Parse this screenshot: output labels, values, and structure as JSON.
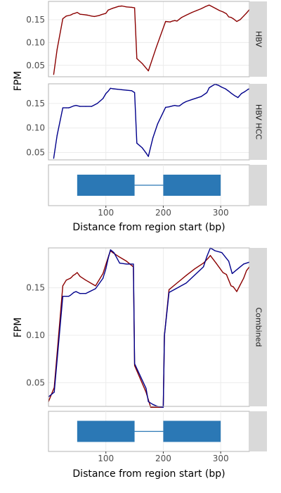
{
  "colors": {
    "hbv": "#8b0000",
    "hcc": "#00008b",
    "gene": "#2b78b5",
    "strip": "#d9d9d9",
    "grid": "#ececec",
    "border": "#b3b3b3"
  },
  "chart_data": [
    {
      "type": "line",
      "panel": "top",
      "xlabel": "Distance from region start (bp)",
      "ylabel": "FPM",
      "xlim": [
        0,
        350
      ],
      "xticks": [
        100,
        200,
        300
      ],
      "grid": true,
      "facets": [
        {
          "strip_label": "HBV",
          "ylim": [
            0.025,
            0.19
          ],
          "yticks": [
            0.05,
            0.1,
            0.15
          ],
          "series": [
            {
              "color": "#8b0000",
              "x": [
                9,
                15,
                25,
                31,
                38,
                40,
                43,
                46,
                50,
                55,
                62,
                68,
                75,
                80,
                88,
                92,
                100,
                104,
                108,
                112,
                117,
                122,
                128,
                136,
                145,
                150,
                154,
                164,
                174,
                188,
                204,
                212,
                216,
                220,
                224,
                228,
                232,
                240,
                250,
                258,
                266,
                274,
                280,
                286,
                292,
                298,
                304,
                310,
                314,
                318,
                322,
                328,
                334,
                340,
                346,
                350
              ],
              "y": [
                0.03,
                0.085,
                0.152,
                0.158,
                0.16,
                0.161,
                0.163,
                0.164,
                0.166,
                0.162,
                0.161,
                0.16,
                0.158,
                0.157,
                0.159,
                0.161,
                0.164,
                0.171,
                0.173,
                0.175,
                0.177,
                0.179,
                0.18,
                0.178,
                0.177,
                0.176,
                0.065,
                0.053,
                0.038,
                0.09,
                0.146,
                0.145,
                0.147,
                0.148,
                0.147,
                0.151,
                0.155,
                0.16,
                0.166,
                0.17,
                0.174,
                0.179,
                0.182,
                0.178,
                0.174,
                0.17,
                0.167,
                0.163,
                0.156,
                0.155,
                0.152,
                0.146,
                0.15,
                0.158,
                0.166,
                0.172
              ]
            }
          ]
        },
        {
          "strip_label": "HBV HCC",
          "ylim": [
            0.035,
            0.19
          ],
          "yticks": [
            0.05,
            0.1,
            0.15
          ],
          "series": [
            {
              "color": "#00008b",
              "x": [
                9,
                15,
                25,
                31,
                35,
                38,
                44,
                48,
                55,
                65,
                75,
                85,
                95,
                100,
                104,
                108,
                112,
                120,
                128,
                136,
                145,
                150,
                154,
                163,
                170,
                174,
                182,
                190,
                204,
                210,
                216,
                220,
                224,
                228,
                235,
                240,
                250,
                258,
                266,
                276,
                280,
                284,
                290,
                296,
                302,
                308,
                314,
                318,
                324,
                330,
                336,
                342,
                348,
                350
              ],
              "y": [
                0.038,
                0.085,
                0.141,
                0.141,
                0.141,
                0.142,
                0.145,
                0.146,
                0.144,
                0.144,
                0.144,
                0.15,
                0.16,
                0.17,
                0.175,
                0.181,
                0.18,
                0.179,
                0.178,
                0.177,
                0.176,
                0.172,
                0.069,
                0.06,
                0.049,
                0.042,
                0.08,
                0.108,
                0.142,
                0.143,
                0.145,
                0.146,
                0.145,
                0.145,
                0.151,
                0.154,
                0.158,
                0.161,
                0.164,
                0.172,
                0.182,
                0.185,
                0.189,
                0.187,
                0.183,
                0.18,
                0.175,
                0.171,
                0.166,
                0.162,
                0.17,
                0.174,
                0.179,
                0.18
              ]
            }
          ]
        }
      ],
      "gene_model": {
        "exons": [
          [
            50,
            150
          ],
          [
            200,
            300
          ]
        ],
        "intron": [
          150,
          200
        ]
      }
    },
    {
      "type": "line",
      "panel": "bottom",
      "xlabel": "Distance from region start (bp)",
      "ylabel": "FPM",
      "xlim": [
        0,
        350
      ],
      "xticks": [
        100,
        200,
        300
      ],
      "ylim": [
        0.025,
        0.192
      ],
      "yticks": [
        0.05,
        0.1,
        0.15
      ],
      "grid": true,
      "strip_label": "Combined",
      "series": [
        {
          "color": "#8b0000",
          "x": [
            0,
            10,
            25,
            31,
            38,
            40,
            43,
            46,
            50,
            55,
            65,
            82,
            95,
            105,
            108,
            112,
            122,
            136,
            148,
            150,
            170,
            178,
            182,
            188,
            200,
            202,
            210,
            220,
            240,
            255,
            270,
            278,
            282,
            292,
            304,
            310,
            314,
            318,
            322,
            328,
            334,
            340,
            345,
            350
          ],
          "y": [
            0.03,
            0.045,
            0.152,
            0.158,
            0.16,
            0.161,
            0.163,
            0.164,
            0.166,
            0.162,
            0.158,
            0.152,
            0.165,
            0.184,
            0.189,
            0.187,
            0.183,
            0.178,
            0.172,
            0.068,
            0.04,
            0.024,
            0.024,
            0.024,
            0.024,
            0.1,
            0.148,
            0.153,
            0.163,
            0.17,
            0.176,
            0.181,
            0.184,
            0.176,
            0.166,
            0.164,
            0.158,
            0.152,
            0.151,
            0.146,
            0.153,
            0.16,
            0.168,
            0.172
          ]
        },
        {
          "color": "#00008b",
          "x": [
            0,
            10,
            25,
            31,
            35,
            38,
            44,
            48,
            55,
            65,
            82,
            95,
            100,
            104,
            108,
            114,
            124,
            136,
            148,
            150,
            170,
            174,
            182,
            190,
            200,
            202,
            210,
            240,
            270,
            276,
            282,
            290,
            302,
            314,
            320,
            330,
            340,
            350
          ],
          "y": [
            0.035,
            0.04,
            0.141,
            0.141,
            0.141,
            0.142,
            0.145,
            0.146,
            0.144,
            0.144,
            0.149,
            0.16,
            0.17,
            0.181,
            0.19,
            0.187,
            0.176,
            0.175,
            0.175,
            0.07,
            0.044,
            0.03,
            0.027,
            0.025,
            0.024,
            0.1,
            0.145,
            0.155,
            0.172,
            0.183,
            0.192,
            0.189,
            0.187,
            0.178,
            0.165,
            0.17,
            0.175,
            0.177
          ]
        }
      ],
      "gene_model": {
        "exons": [
          [
            50,
            150
          ],
          [
            200,
            300
          ]
        ],
        "intron": [
          150,
          200
        ]
      }
    }
  ]
}
